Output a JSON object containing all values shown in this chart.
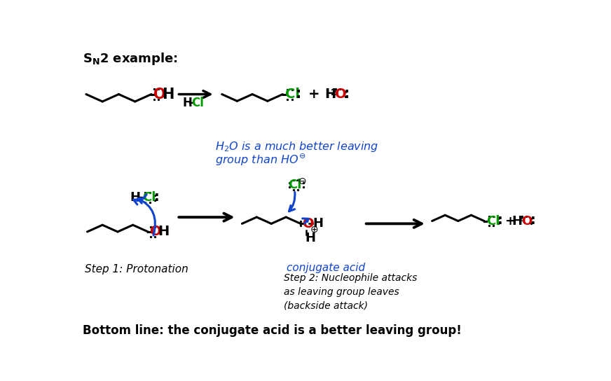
{
  "background": "#ffffff",
  "title": "S_N2 example:",
  "bottom_line": "Bottom line: the conjugate acid is a better leaving group!",
  "blue_note_line1": "H₂O is a much better leaving",
  "blue_note_line2": "group than HO⊖",
  "step1_label": "Step 1: Protonation",
  "conjugate_label": "conjugate acid",
  "step2_line1": "Step 2: Nucleophile attacks",
  "step2_line2": "as leaving group leaves",
  "step2_line3": "(backside attack)",
  "black": "#000000",
  "red": "#cc0000",
  "green": "#009900",
  "blue": "#1144cc"
}
